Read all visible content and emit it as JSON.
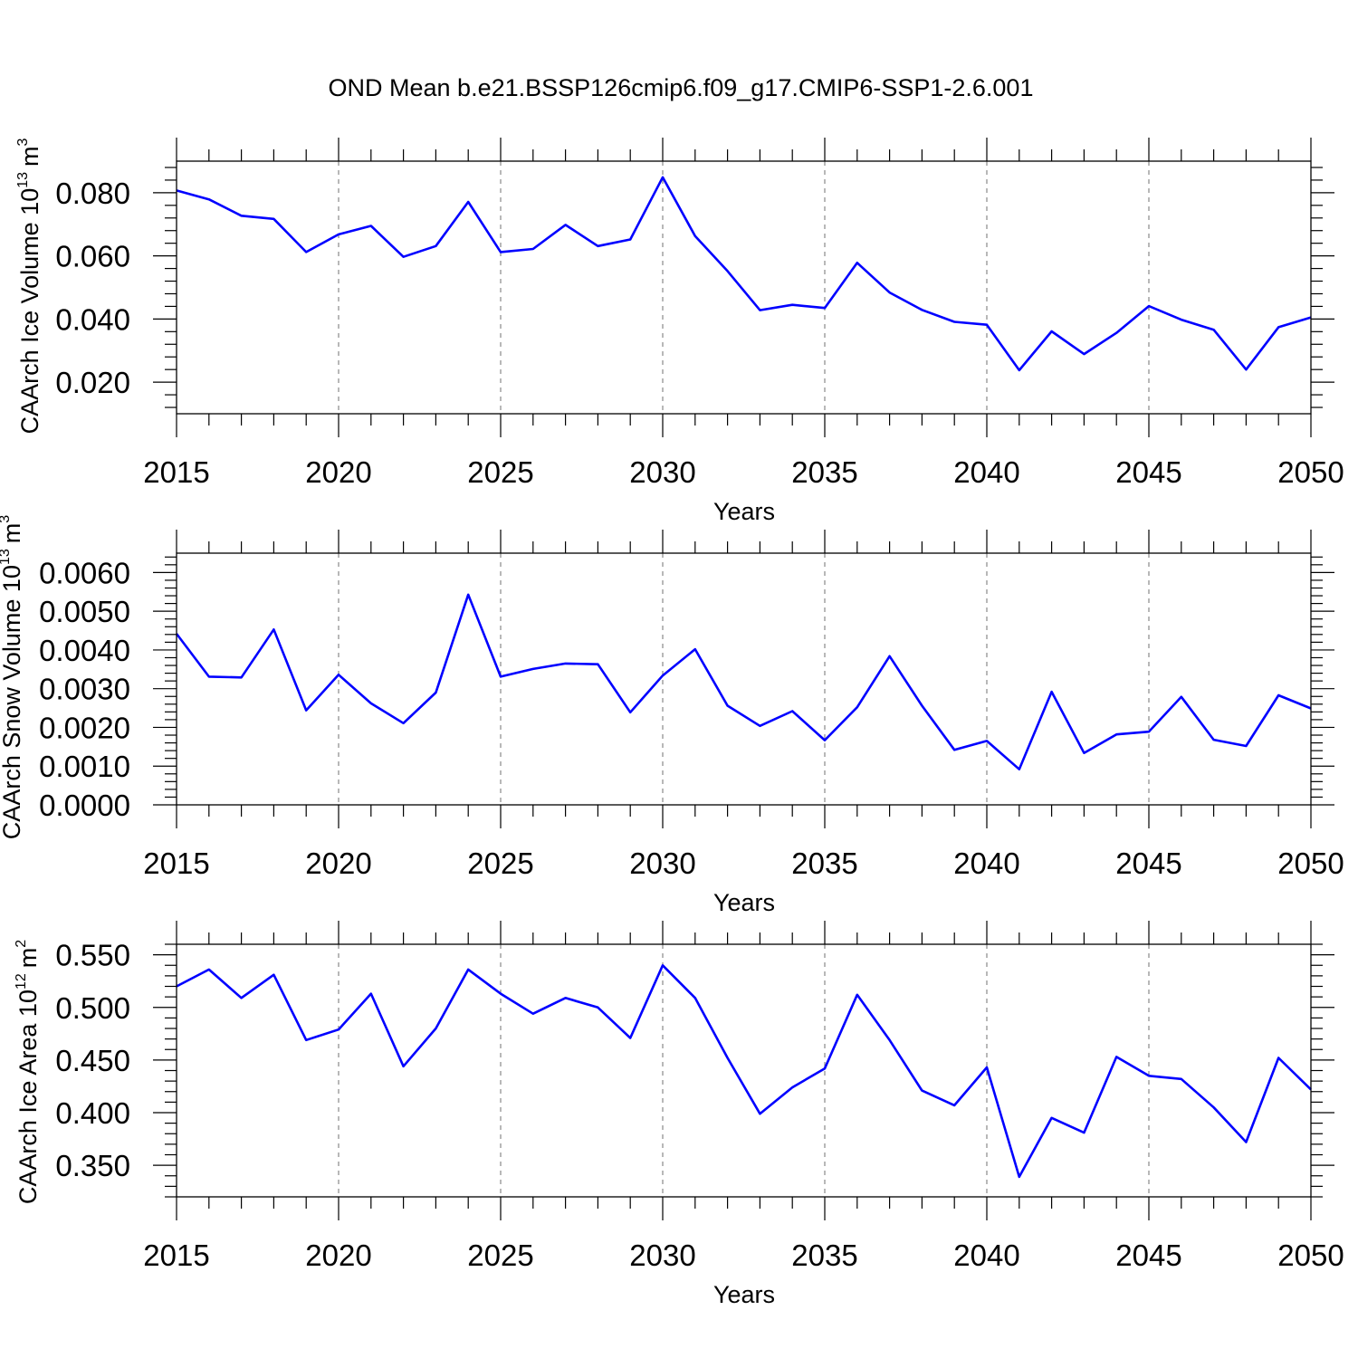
{
  "title": "OND Mean b.e21.BSSP126cmip6.f09_g17.CMIP6-SSP1-2.6.001",
  "chart_data": [
    {
      "type": "line",
      "xlabel": "Years",
      "ylabel": "CAArch Ice Volume 10",
      "ylabel_exp": "13",
      "ylabel_unit": "m",
      "ylabel_unit_exp": "3",
      "xlim": [
        2015,
        2050
      ],
      "ylim": [
        0.01,
        0.09
      ],
      "x_ticks": [
        "2015",
        "2020",
        "2025",
        "2030",
        "2035",
        "2040",
        "2045",
        "2050"
      ],
      "y_ticks": [
        "0.020",
        "0.040",
        "0.060",
        "0.080"
      ],
      "y_tick_values": [
        0.02,
        0.04,
        0.06,
        0.08
      ],
      "grid": "vertical dashed at major x ticks",
      "line_color": "#0000ff",
      "x": [
        2015,
        2016,
        2017,
        2018,
        2019,
        2020,
        2021,
        2022,
        2023,
        2024,
        2025,
        2026,
        2027,
        2028,
        2029,
        2030,
        2031,
        2032,
        2033,
        2034,
        2035,
        2036,
        2037,
        2038,
        2039,
        2040,
        2041,
        2042,
        2043,
        2044,
        2045,
        2046,
        2047,
        2048,
        2049,
        2050
      ],
      "values": [
        0.0807,
        0.0779,
        0.0727,
        0.0717,
        0.0612,
        0.0668,
        0.0695,
        0.0597,
        0.0631,
        0.0771,
        0.0612,
        0.0622,
        0.0698,
        0.0631,
        0.0652,
        0.0849,
        0.0663,
        0.0552,
        0.0428,
        0.0445,
        0.0435,
        0.0578,
        0.0484,
        0.0429,
        0.0391,
        0.0382,
        0.0238,
        0.0361,
        0.0289,
        0.0356,
        0.0441,
        0.0398,
        0.0366,
        0.024,
        0.0374,
        0.0405
      ]
    },
    {
      "type": "line",
      "xlabel": "Years",
      "ylabel": "CAArch Snow Volume 10",
      "ylabel_exp": "13",
      "ylabel_unit": "m",
      "ylabel_unit_exp": "3",
      "xlim": [
        2015,
        2050
      ],
      "ylim": [
        0.0,
        0.0065
      ],
      "x_ticks": [
        "2015",
        "2020",
        "2025",
        "2030",
        "2035",
        "2040",
        "2045",
        "2050"
      ],
      "y_ticks": [
        "0.0000",
        "0.0010",
        "0.0020",
        "0.0030",
        "0.0040",
        "0.0050",
        "0.0060"
      ],
      "y_tick_values": [
        0.0,
        0.001,
        0.002,
        0.003,
        0.004,
        0.005,
        0.006
      ],
      "grid": "vertical dashed at major x ticks",
      "line_color": "#0000ff",
      "x": [
        2015,
        2016,
        2017,
        2018,
        2019,
        2020,
        2021,
        2022,
        2023,
        2024,
        2025,
        2026,
        2027,
        2028,
        2029,
        2030,
        2031,
        2032,
        2033,
        2034,
        2035,
        2036,
        2037,
        2038,
        2039,
        2040,
        2041,
        2042,
        2043,
        2044,
        2045,
        2046,
        2047,
        2048,
        2049,
        2050
      ],
      "values": [
        0.00442,
        0.00331,
        0.00329,
        0.00453,
        0.00244,
        0.00336,
        0.00262,
        0.00211,
        0.0029,
        0.00543,
        0.00331,
        0.00351,
        0.00365,
        0.00363,
        0.00239,
        0.00334,
        0.00402,
        0.00256,
        0.00204,
        0.00242,
        0.00167,
        0.00252,
        0.00384,
        0.00256,
        0.00142,
        0.00165,
        0.00092,
        0.00292,
        0.00134,
        0.00182,
        0.00189,
        0.00279,
        0.00168,
        0.00152,
        0.00283,
        0.00249
      ]
    },
    {
      "type": "line",
      "xlabel": "Years",
      "ylabel": "CAArch Ice Area 10",
      "ylabel_exp": "12",
      "ylabel_unit": "m",
      "ylabel_unit_exp": "2",
      "xlim": [
        2015,
        2050
      ],
      "ylim": [
        0.32,
        0.56
      ],
      "x_ticks": [
        "2015",
        "2020",
        "2025",
        "2030",
        "2035",
        "2040",
        "2045",
        "2050"
      ],
      "y_ticks": [
        "0.350",
        "0.400",
        "0.450",
        "0.500",
        "0.550"
      ],
      "y_tick_values": [
        0.35,
        0.4,
        0.45,
        0.5,
        0.55
      ],
      "grid": "vertical dashed at major x ticks",
      "line_color": "#0000ff",
      "x": [
        2015,
        2016,
        2017,
        2018,
        2019,
        2020,
        2021,
        2022,
        2023,
        2024,
        2025,
        2026,
        2027,
        2028,
        2029,
        2030,
        2031,
        2032,
        2033,
        2034,
        2035,
        2036,
        2037,
        2038,
        2039,
        2040,
        2041,
        2042,
        2043,
        2044,
        2045,
        2046,
        2047,
        2048,
        2049,
        2050
      ],
      "values": [
        0.52,
        0.536,
        0.509,
        0.531,
        0.469,
        0.479,
        0.513,
        0.444,
        0.48,
        0.536,
        0.513,
        0.494,
        0.509,
        0.5,
        0.471,
        0.54,
        0.509,
        0.452,
        0.399,
        0.424,
        0.442,
        0.512,
        0.469,
        0.421,
        0.407,
        0.443,
        0.339,
        0.395,
        0.381,
        0.453,
        0.435,
        0.432,
        0.405,
        0.372,
        0.452,
        0.422
      ]
    }
  ]
}
